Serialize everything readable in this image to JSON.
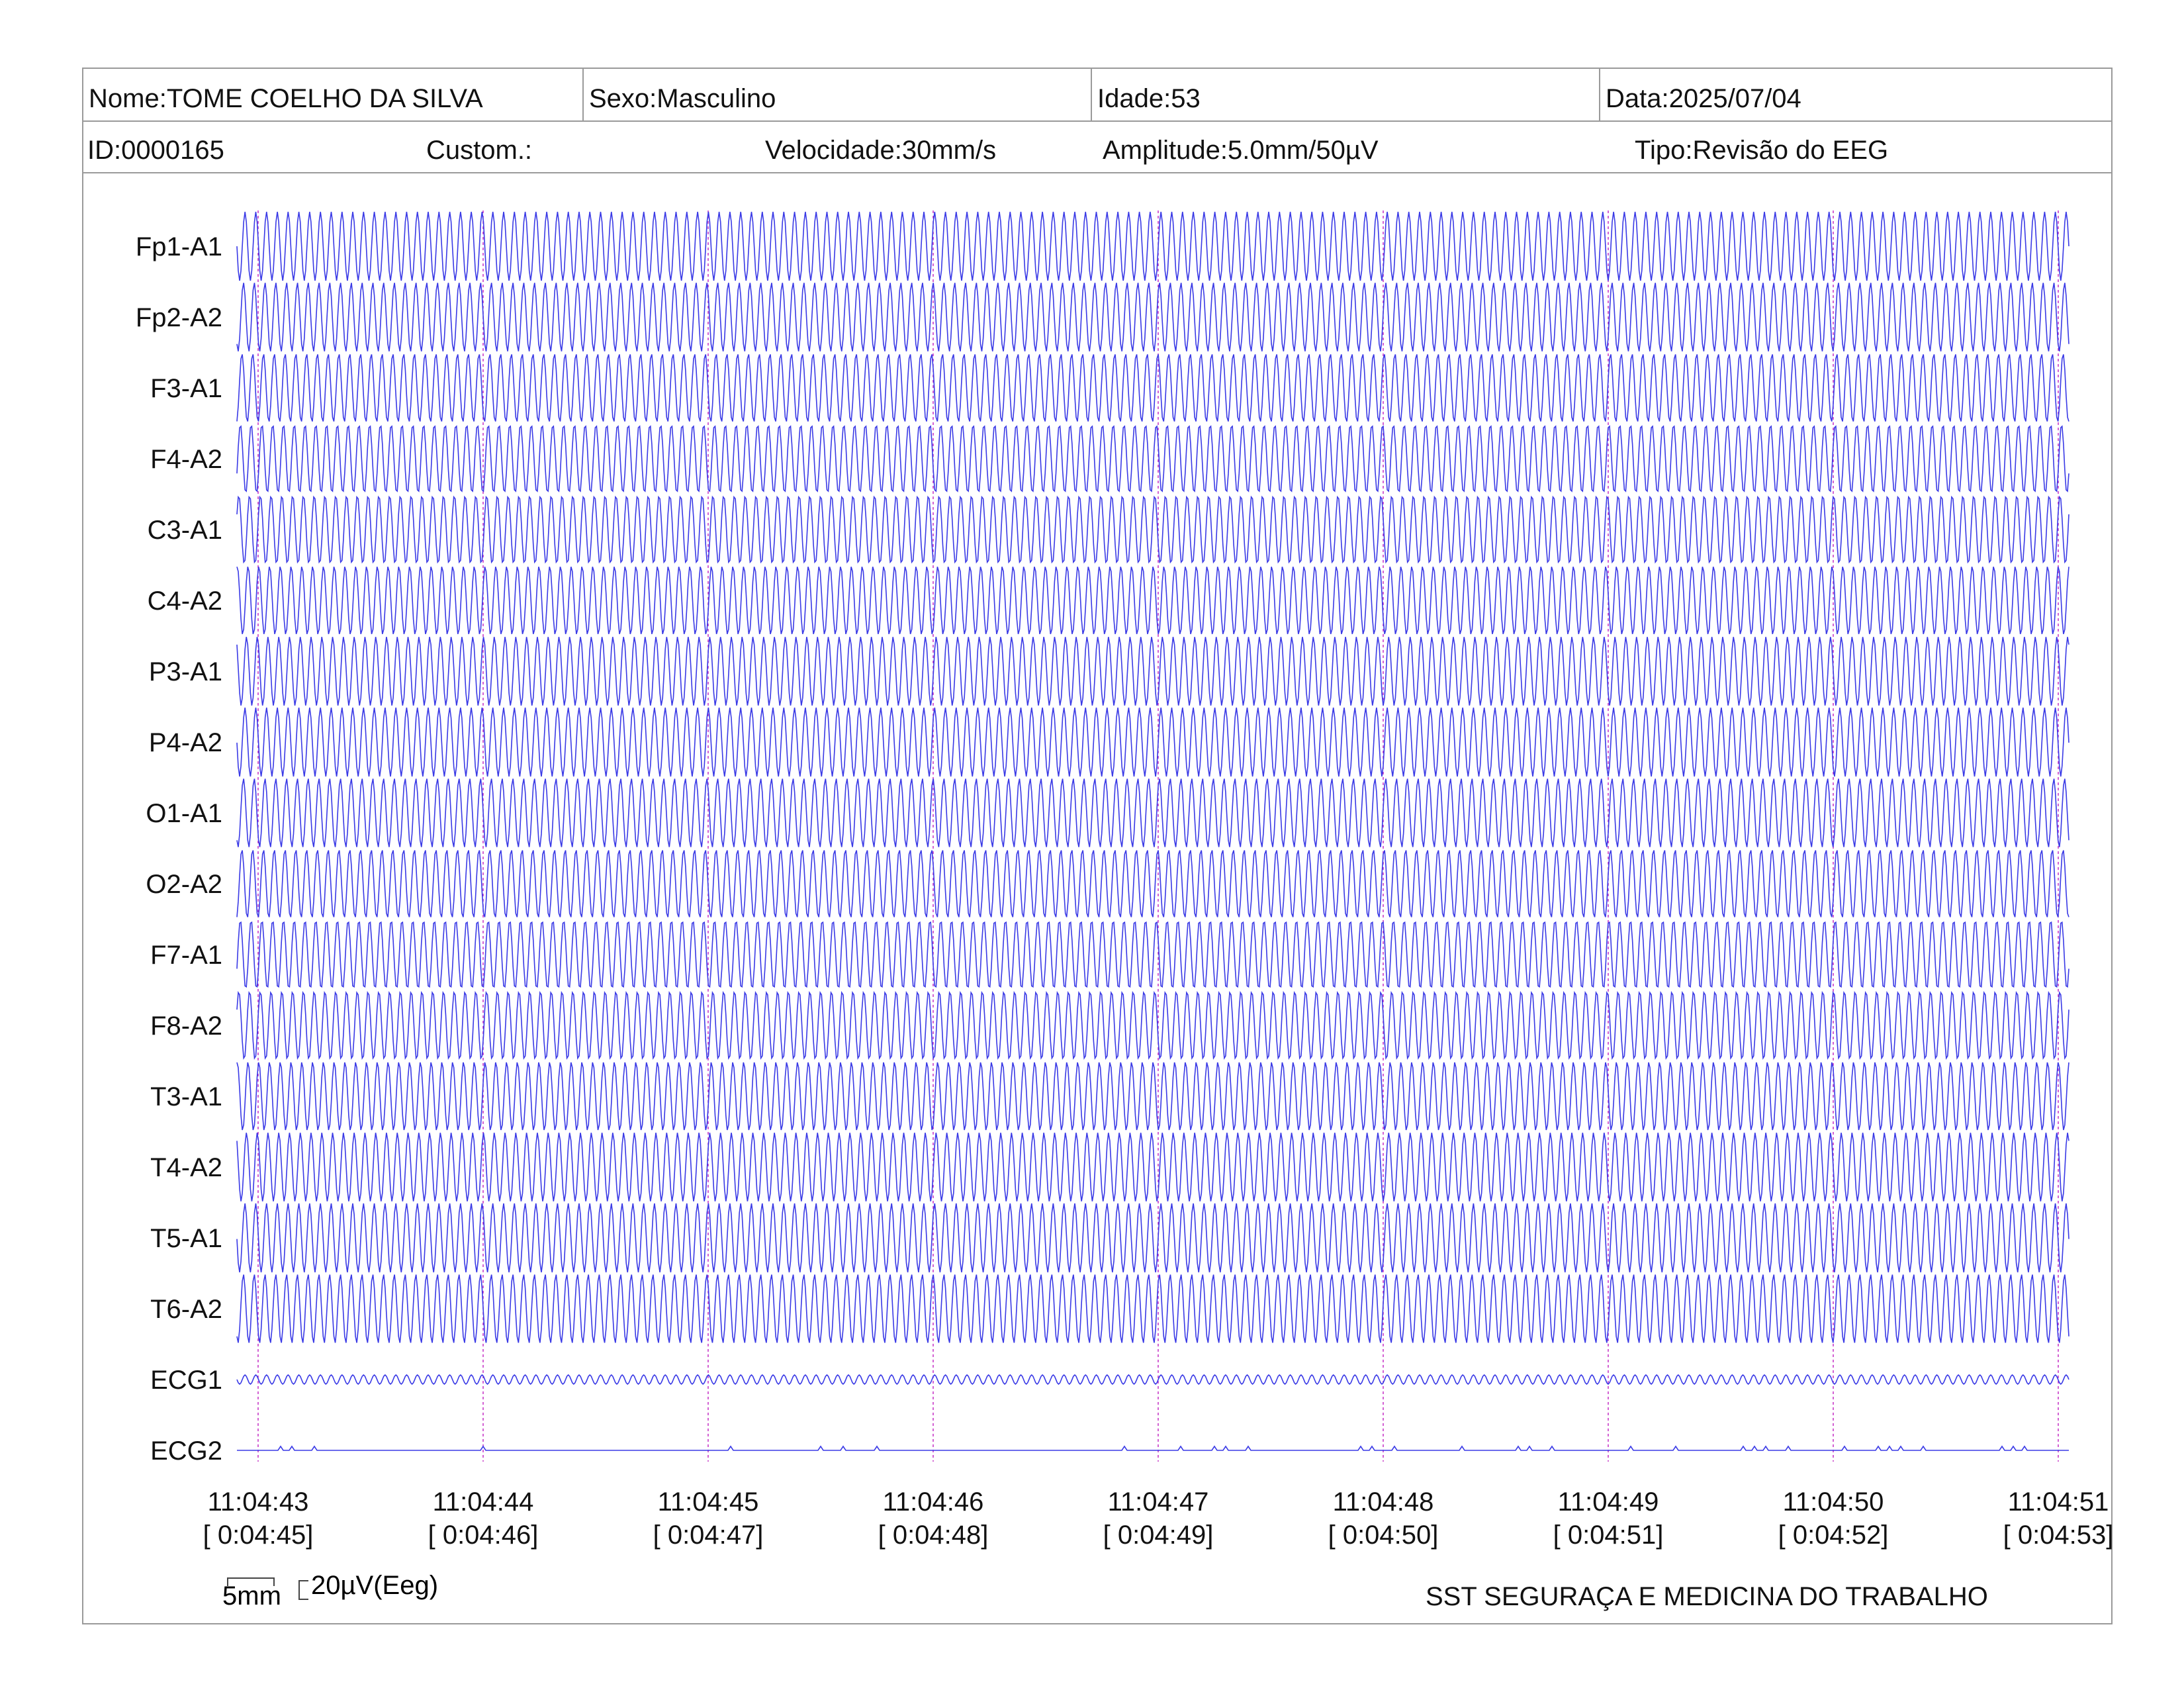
{
  "header": {
    "nome": "Nome:TOME COELHO DA SILVA",
    "sexo": "Sexo:Masculino",
    "idade": "Idade:53",
    "data": "Data:2025/07/04",
    "id": "ID:0000165",
    "custom": "Custom.:",
    "velocidade": "Velocidade:30mm/s",
    "amplitude": "Amplitude:5.0mm/50µV",
    "tipo": "Tipo:Revisão do EEG"
  },
  "scale": {
    "time_label": "5mm",
    "amplitude_label": "20µV(Eeg)"
  },
  "footer": {
    "organization": "SST SEGURAÇA E MEDICINA DO TRABALHO"
  },
  "colors": {
    "trace": "#3a3ae6",
    "grid_marker": "#c020c0",
    "border": "#9a9a9a"
  },
  "chart_data": {
    "type": "line",
    "channels": [
      "Fp1-A1",
      "Fp2-A2",
      "F3-A1",
      "F4-A2",
      "C3-A1",
      "C4-A2",
      "P3-A1",
      "P4-A2",
      "O1-A1",
      "O2-A2",
      "F7-A1",
      "F8-A2",
      "T3-A1",
      "T4-A2",
      "T5-A1",
      "T6-A2",
      "ECG1",
      "ECG2"
    ],
    "time_ticks": [
      {
        "clock": "11:04:43",
        "elapsed": "[ 0:04:45]"
      },
      {
        "clock": "11:04:44",
        "elapsed": "[ 0:04:46]"
      },
      {
        "clock": "11:04:45",
        "elapsed": "[ 0:04:47]"
      },
      {
        "clock": "11:04:46",
        "elapsed": "[ 0:04:48]"
      },
      {
        "clock": "11:04:47",
        "elapsed": "[ 0:04:49]"
      },
      {
        "clock": "11:04:48",
        "elapsed": "[ 0:04:50]"
      },
      {
        "clock": "11:04:49",
        "elapsed": "[ 0:04:51]"
      },
      {
        "clock": "11:04:50",
        "elapsed": "[ 0:04:52]"
      },
      {
        "clock": "11:04:51",
        "elapsed": "[ 0:04:53]"
      }
    ],
    "eeg_wave_cycles": 170,
    "ecg1_wave_cycles": 170,
    "ecg2_spike_times_s": [
      0.1,
      0.15,
      0.25,
      1.0,
      2.1,
      2.5,
      2.6,
      2.75,
      3.85,
      4.1,
      4.25,
      4.3,
      4.4,
      4.9,
      4.95,
      5.05,
      5.35,
      5.6,
      5.65,
      5.75,
      6.1,
      6.3,
      6.6,
      6.65,
      6.7,
      6.8,
      7.05,
      7.2,
      7.25,
      7.3,
      7.4,
      7.75,
      7.8,
      7.85
    ]
  }
}
